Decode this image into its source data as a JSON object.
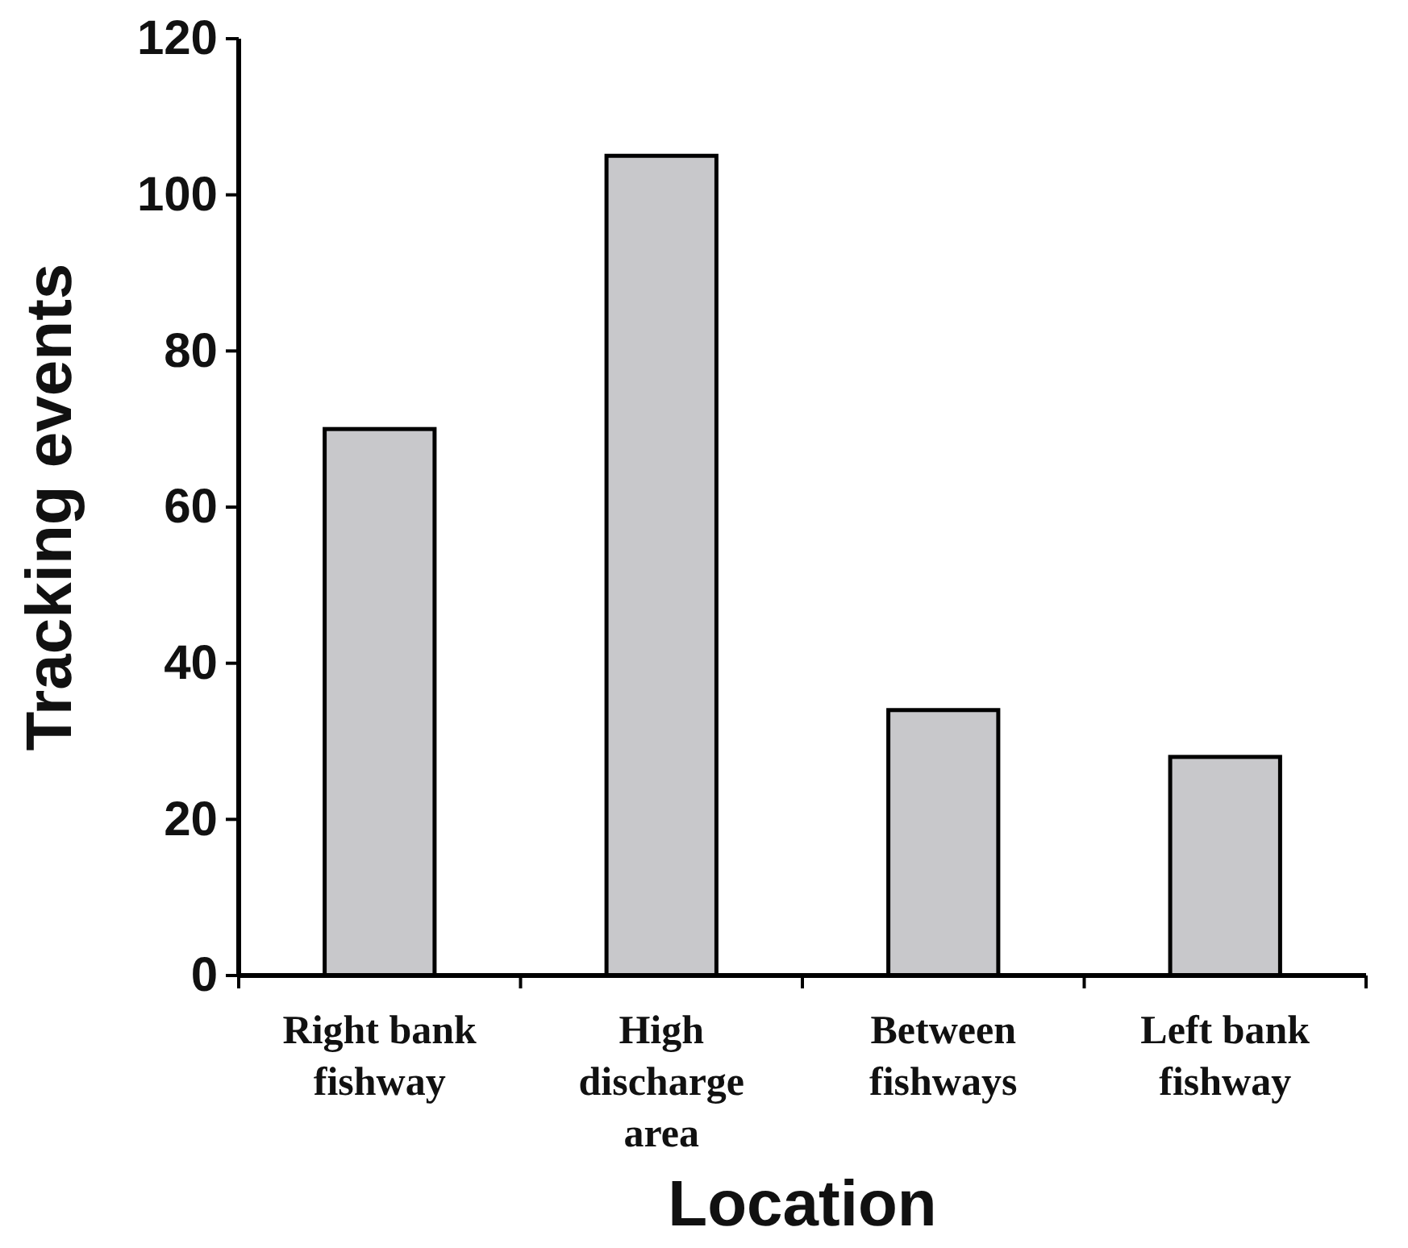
{
  "chart_data": {
    "type": "bar",
    "xlabel": "Location",
    "ylabel": "Tracking events",
    "categories": [
      "Right bank fishway",
      "High discharge area",
      "Between fishways",
      "Left bank fishway"
    ],
    "values": [
      70,
      105,
      34,
      28
    ],
    "color": "#c8c8cb",
    "ylim": [
      0,
      120
    ],
    "yticks": [
      0,
      20,
      40,
      60,
      80,
      100,
      120
    ]
  }
}
